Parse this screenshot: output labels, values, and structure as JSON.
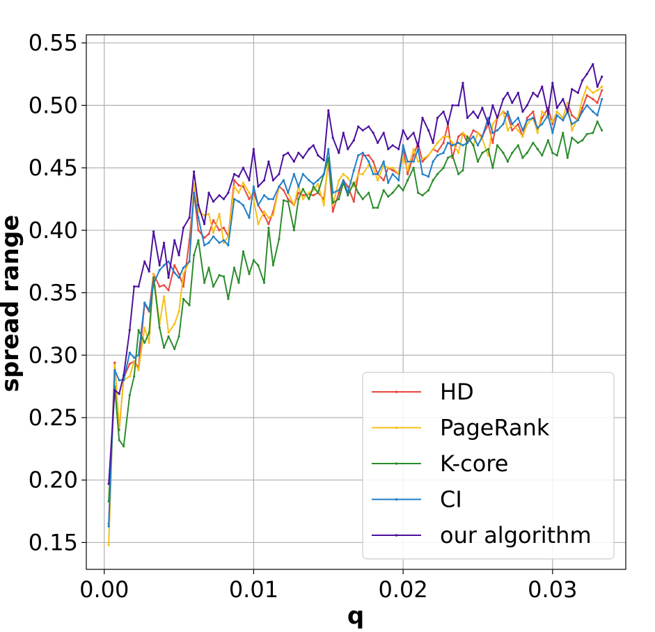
{
  "chart_data": {
    "type": "line",
    "title": "",
    "xlabel": "q",
    "ylabel": "spread range",
    "xlim": [
      -0.0012,
      0.0349
    ],
    "ylim": [
      0.1285,
      0.5565
    ],
    "xticks": [
      0.0,
      0.01,
      0.02,
      0.03
    ],
    "xtick_labels": [
      "0.00",
      "0.01",
      "0.02",
      "0.03"
    ],
    "yticks": [
      0.15,
      0.2,
      0.25,
      0.3,
      0.35,
      0.4,
      0.45,
      0.5,
      0.55
    ],
    "ytick_labels": [
      "0.15",
      "0.20",
      "0.25",
      "0.30",
      "0.35",
      "0.40",
      "0.45",
      "0.50",
      "0.55"
    ],
    "grid": true,
    "legend_position": "lower-right",
    "x": [
      0.0003,
      0.0007,
      0.001,
      0.0013,
      0.0017,
      0.002,
      0.0023,
      0.0027,
      0.003,
      0.0033,
      0.0037,
      0.004,
      0.0043,
      0.0047,
      0.005,
      0.0053,
      0.0057,
      0.006,
      0.0063,
      0.0067,
      0.007,
      0.0073,
      0.0077,
      0.008,
      0.0083,
      0.0087,
      0.009,
      0.0093,
      0.0097,
      0.01,
      0.0103,
      0.0107,
      0.011,
      0.0113,
      0.0117,
      0.012,
      0.0123,
      0.0127,
      0.013,
      0.0133,
      0.0137,
      0.014,
      0.0143,
      0.0147,
      0.015,
      0.0153,
      0.0157,
      0.016,
      0.0163,
      0.0167,
      0.017,
      0.0173,
      0.0177,
      0.018,
      0.0183,
      0.0187,
      0.019,
      0.0193,
      0.0197,
      0.02,
      0.0203,
      0.0207,
      0.021,
      0.0213,
      0.0217,
      0.022,
      0.0223,
      0.0227,
      0.023,
      0.0233,
      0.0237,
      0.024,
      0.0243,
      0.0247,
      0.025,
      0.0253,
      0.0257,
      0.026,
      0.0263,
      0.0267,
      0.027,
      0.0273,
      0.0277,
      0.028,
      0.0283,
      0.0287,
      0.029,
      0.0293,
      0.0297,
      0.03,
      0.0303,
      0.0307,
      0.031,
      0.0313,
      0.0317,
      0.032,
      0.0323,
      0.0327,
      0.033,
      0.0333
    ],
    "series": [
      {
        "name": "HD",
        "color": "#e8453c",
        "values": [
          0.165,
          0.294,
          0.24,
          0.282,
          0.293,
          0.295,
          0.29,
          0.341,
          0.335,
          0.365,
          0.355,
          0.356,
          0.352,
          0.372,
          0.365,
          0.355,
          0.392,
          0.43,
          0.4,
          0.394,
          0.397,
          0.408,
          0.4,
          0.402,
          0.395,
          0.44,
          0.436,
          0.435,
          0.425,
          0.43,
          0.42,
          0.412,
          0.405,
          0.415,
          0.435,
          0.432,
          0.425,
          0.42,
          0.43,
          0.428,
          0.429,
          0.428,
          0.43,
          0.425,
          0.455,
          0.415,
          0.43,
          0.44,
          0.435,
          0.423,
          0.445,
          0.46,
          0.46,
          0.455,
          0.445,
          0.44,
          0.45,
          0.448,
          0.445,
          0.466,
          0.445,
          0.46,
          0.47,
          0.455,
          0.46,
          0.465,
          0.463,
          0.47,
          0.485,
          0.458,
          0.475,
          0.478,
          0.47,
          0.48,
          0.478,
          0.475,
          0.485,
          0.47,
          0.49,
          0.495,
          0.492,
          0.48,
          0.485,
          0.475,
          0.49,
          0.495,
          0.48,
          0.49,
          0.498,
          0.485,
          0.495,
          0.49,
          0.502,
          0.492,
          0.488,
          0.498,
          0.508,
          0.505,
          0.502,
          0.512
        ]
      },
      {
        "name": "PageRank",
        "color": "#f5c018",
        "values": [
          0.148,
          0.292,
          0.242,
          0.28,
          0.283,
          0.295,
          0.288,
          0.322,
          0.31,
          0.365,
          0.325,
          0.347,
          0.318,
          0.325,
          0.335,
          0.365,
          0.375,
          0.437,
          0.415,
          0.412,
          0.413,
          0.398,
          0.413,
          0.39,
          0.395,
          0.435,
          0.43,
          0.438,
          0.43,
          0.425,
          0.405,
          0.415,
          0.41,
          0.412,
          0.435,
          0.44,
          0.43,
          0.42,
          0.435,
          0.425,
          0.43,
          0.432,
          0.437,
          0.42,
          0.458,
          0.42,
          0.44,
          0.445,
          0.442,
          0.435,
          0.445,
          0.445,
          0.452,
          0.45,
          0.44,
          0.452,
          0.45,
          0.45,
          0.445,
          0.458,
          0.448,
          0.465,
          0.455,
          0.457,
          0.46,
          0.465,
          0.47,
          0.475,
          0.475,
          0.47,
          0.462,
          0.478,
          0.475,
          0.468,
          0.478,
          0.473,
          0.46,
          0.485,
          0.49,
          0.495,
          0.48,
          0.485,
          0.48,
          0.475,
          0.485,
          0.49,
          0.478,
          0.495,
          0.49,
          0.487,
          0.495,
          0.49,
          0.502,
          0.48,
          0.49,
          0.505,
          0.515,
          0.51,
          0.512,
          0.515
        ]
      },
      {
        "name": "K-core",
        "color": "#2a8c2a",
        "values": [
          0.183,
          0.275,
          0.232,
          0.227,
          0.268,
          0.283,
          0.32,
          0.31,
          0.318,
          0.362,
          0.322,
          0.306,
          0.315,
          0.305,
          0.315,
          0.345,
          0.34,
          0.38,
          0.392,
          0.358,
          0.37,
          0.355,
          0.364,
          0.363,
          0.345,
          0.37,
          0.358,
          0.383,
          0.365,
          0.376,
          0.372,
          0.358,
          0.402,
          0.372,
          0.393,
          0.424,
          0.423,
          0.4,
          0.425,
          0.433,
          0.425,
          0.435,
          0.43,
          0.445,
          0.458,
          0.422,
          0.425,
          0.438,
          0.428,
          0.438,
          0.43,
          0.425,
          0.43,
          0.418,
          0.418,
          0.432,
          0.427,
          0.43,
          0.436,
          0.432,
          0.44,
          0.45,
          0.43,
          0.428,
          0.432,
          0.44,
          0.445,
          0.45,
          0.458,
          0.46,
          0.445,
          0.448,
          0.475,
          0.468,
          0.455,
          0.462,
          0.465,
          0.45,
          0.468,
          0.462,
          0.455,
          0.462,
          0.468,
          0.458,
          0.462,
          0.47,
          0.465,
          0.46,
          0.472,
          0.462,
          0.46,
          0.478,
          0.458,
          0.474,
          0.47,
          0.472,
          0.477,
          0.478,
          0.487,
          0.48
        ]
      },
      {
        "name": "CI",
        "color": "#1f7ec7",
        "values": [
          0.163,
          0.288,
          0.28,
          0.28,
          0.302,
          0.298,
          0.3,
          0.342,
          0.336,
          0.357,
          0.368,
          0.372,
          0.375,
          0.366,
          0.362,
          0.37,
          0.375,
          0.43,
          0.41,
          0.388,
          0.39,
          0.395,
          0.39,
          0.392,
          0.388,
          0.425,
          0.423,
          0.42,
          0.41,
          0.435,
          0.42,
          0.428,
          0.425,
          0.425,
          0.435,
          0.44,
          0.43,
          0.445,
          0.435,
          0.445,
          0.44,
          0.437,
          0.44,
          0.445,
          0.465,
          0.43,
          0.432,
          0.44,
          0.43,
          0.448,
          0.46,
          0.462,
          0.455,
          0.445,
          0.445,
          0.455,
          0.438,
          0.445,
          0.44,
          0.468,
          0.455,
          0.455,
          0.465,
          0.445,
          0.443,
          0.455,
          0.46,
          0.462,
          0.47,
          0.468,
          0.47,
          0.468,
          0.47,
          0.475,
          0.468,
          0.475,
          0.49,
          0.478,
          0.48,
          0.485,
          0.495,
          0.485,
          0.49,
          0.48,
          0.488,
          0.49,
          0.482,
          0.485,
          0.492,
          0.478,
          0.492,
          0.488,
          0.495,
          0.485,
          0.488,
          0.495,
          0.5,
          0.495,
          0.492,
          0.505
        ]
      },
      {
        "name": "our algorithm",
        "color": "#4b0f9c",
        "values": [
          0.197,
          0.272,
          0.269,
          0.284,
          0.32,
          0.355,
          0.355,
          0.375,
          0.367,
          0.399,
          0.372,
          0.39,
          0.362,
          0.392,
          0.38,
          0.402,
          0.41,
          0.447,
          0.42,
          0.405,
          0.43,
          0.423,
          0.428,
          0.425,
          0.43,
          0.445,
          0.443,
          0.45,
          0.44,
          0.465,
          0.435,
          0.44,
          0.455,
          0.44,
          0.445,
          0.46,
          0.462,
          0.455,
          0.462,
          0.458,
          0.465,
          0.468,
          0.46,
          0.456,
          0.496,
          0.474,
          0.462,
          0.478,
          0.465,
          0.472,
          0.483,
          0.48,
          0.483,
          0.478,
          0.47,
          0.478,
          0.465,
          0.468,
          0.465,
          0.48,
          0.473,
          0.478,
          0.467,
          0.49,
          0.48,
          0.47,
          0.49,
          0.495,
          0.485,
          0.5,
          0.5,
          0.518,
          0.49,
          0.495,
          0.49,
          0.498,
          0.485,
          0.5,
          0.49,
          0.505,
          0.51,
          0.502,
          0.51,
          0.495,
          0.5,
          0.51,
          0.507,
          0.515,
          0.493,
          0.518,
          0.498,
          0.505,
          0.495,
          0.513,
          0.51,
          0.52,
          0.525,
          0.533,
          0.515,
          0.523
        ]
      }
    ]
  }
}
